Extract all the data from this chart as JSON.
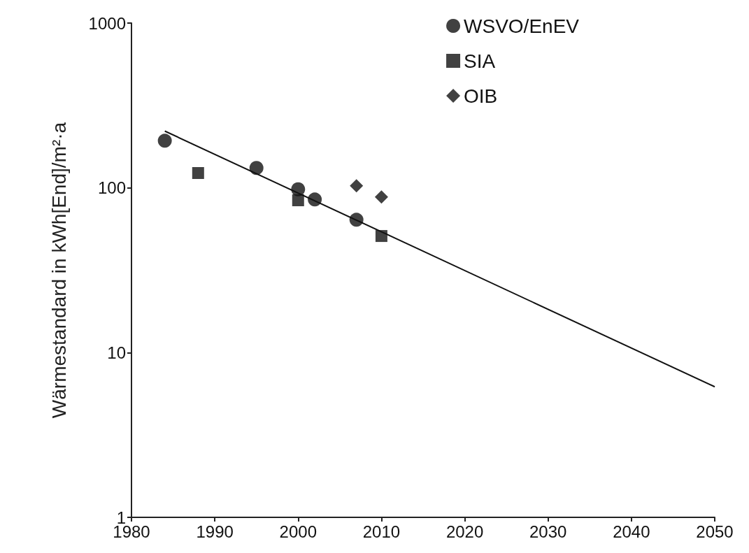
{
  "chart_data": {
    "type": "scatter",
    "ylabel": "Wärmestandard in kWh[End]/m²·a",
    "log": "y",
    "xlim": [
      1980,
      2050
    ],
    "xticks": [
      1980,
      1990,
      2000,
      2010,
      2020,
      2030,
      2040,
      2050
    ],
    "ylim": [
      1,
      1000
    ],
    "yticks": [
      1,
      10,
      100,
      1000
    ],
    "legend": "top right",
    "series": [
      {
        "name": "WSVO/EnEV",
        "color": "#111111",
        "marker": "circle",
        "x": [
          1984,
          1995,
          2000,
          2002,
          2007
        ],
        "values": [
          193,
          132,
          98,
          85,
          64
        ]
      },
      {
        "name": "SIA",
        "color": "#111111",
        "marker": "square",
        "x": [
          1988,
          2000,
          2010
        ],
        "values": [
          123,
          84,
          51
        ]
      },
      {
        "name": "OIB",
        "color": "#111111",
        "marker": "diamond",
        "x": [
          2007,
          2010
        ],
        "values": [
          103,
          88
        ]
      },
      {
        "type": "line",
        "color": "#111111",
        "marker": "none",
        "line_style": "solid",
        "x": [
          1984,
          2050
        ],
        "values": [
          221,
          6.2
        ]
      }
    ]
  }
}
